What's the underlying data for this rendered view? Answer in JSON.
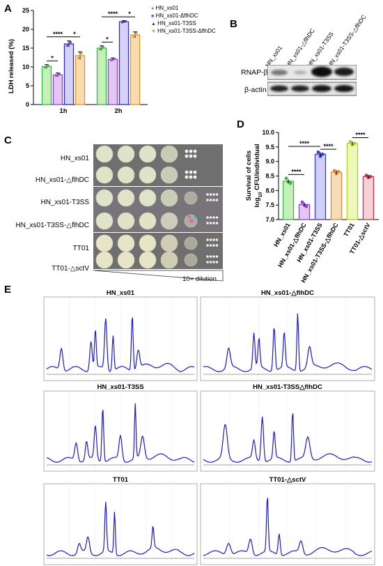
{
  "panels": {
    "a": "A",
    "b": "B",
    "c": "C",
    "d": "D",
    "e": "E"
  },
  "legend": {
    "items": [
      {
        "name": "HN_xs01",
        "color": "#38b44a",
        "marker": "circle"
      },
      {
        "name": "HN_xs01-ΔflhDC",
        "color": "#8e44d8",
        "marker": "square"
      },
      {
        "name": "HN_xs01-T3SS",
        "color": "#2c2cc8",
        "marker": "triangle"
      },
      {
        "name": "HN_xs01-T3SS-ΔflhDC",
        "color": "#b8a020",
        "marker": "triangle-down"
      }
    ]
  },
  "chart_data": [
    {
      "type": "bar",
      "ylabel": "LDH released (%)",
      "categories": [
        "1h",
        "2h"
      ],
      "ylim": [
        0,
        25
      ],
      "yticks": [
        0,
        5,
        10,
        15,
        20,
        25
      ],
      "series": [
        {
          "name": "HN_xs01",
          "values": [
            10.1,
            15.0
          ],
          "err": [
            0.5,
            0.6
          ],
          "fill": "#c6f0b8",
          "stroke": "#38b44a"
        },
        {
          "name": "HN_xs01-ΔflhDC",
          "values": [
            7.9,
            12.0
          ],
          "err": [
            0.5,
            0.4
          ],
          "fill": "#e4c6f5",
          "stroke": "#8e44d8"
        },
        {
          "name": "HN_xs01-T3SS",
          "values": [
            16.1,
            22.0
          ],
          "err": [
            0.8,
            0.3
          ],
          "fill": "#d6d2f7",
          "stroke": "#2c2cc8"
        },
        {
          "name": "HN_xs01-T3SS-ΔflhDC",
          "values": [
            13.0,
            18.5
          ],
          "err": [
            1.0,
            0.8
          ],
          "fill": "#f8dcb0",
          "stroke": "#d89a30"
        }
      ],
      "significance": [
        "*",
        "****",
        "*",
        "*",
        "****",
        "*"
      ]
    },
    {
      "type": "bar",
      "ylabel": "Survival of cells",
      "ylabel2": "log",
      "ylabel2_sub": "10",
      "ylabel2_rest": " CFU/individual",
      "categories": [
        "HN_xs01",
        "HN_xs01-△flhDC",
        "HN_xs01-T3SS",
        "HN_xs01-T3SS-△flhDC",
        "TT01",
        "TT01-△sctV"
      ],
      "values": [
        8.32,
        7.52,
        9.25,
        8.63,
        9.62,
        8.48
      ],
      "ylim": [
        7.0,
        10.0
      ],
      "yticks": [
        "7.0",
        "7.5",
        "8.0",
        "8.5",
        "9.0",
        "9.5",
        "10.0"
      ],
      "fills": [
        "#c6f0b8",
        "#e4c6f5",
        "#d0d0f7",
        "#f8dcb8",
        "#eef8b8",
        "#f8d0d8"
      ],
      "strokes": [
        "#38b44a",
        "#8e44d8",
        "#3a3ad8",
        "#d88a40",
        "#b8c820",
        "#c83040"
      ],
      "points": [
        [
          8.42,
          8.3,
          8.25
        ],
        [
          7.6,
          7.5,
          7.45
        ],
        [
          9.32,
          9.18,
          9.25
        ],
        [
          8.68,
          8.58,
          8.65
        ],
        [
          9.68,
          9.58,
          9.62
        ],
        [
          8.52,
          8.45,
          8.48
        ]
      ],
      "significance": [
        "****",
        "****",
        "****",
        "****"
      ]
    }
  ],
  "blot": {
    "lanes": [
      "HN_xs01",
      "HN_xs01-△flhDC",
      "HN_xs01-T3SS",
      "HN_xs01-T3SS-△flhDC"
    ],
    "rows": [
      "RNAP-β",
      "β-actin"
    ]
  },
  "plates": {
    "strains": [
      "HN_xs01",
      "HN_xs01-△flhDC",
      "HN_xs01-T3SS",
      "HN_xs01-T3SS-△flhDC",
      "TT01",
      "TT01-△sctV"
    ],
    "dilution": "10× dilution"
  },
  "chromatograms": [
    {
      "title": "HN_xs01"
    },
    {
      "title": "HN_xs01-△flhDC"
    },
    {
      "title": "HN_xs01-T3SS"
    },
    {
      "title": "HN_xs01-T3SS△flhDC"
    },
    {
      "title": "TT01"
    },
    {
      "title": "TT01-△sctV"
    }
  ]
}
